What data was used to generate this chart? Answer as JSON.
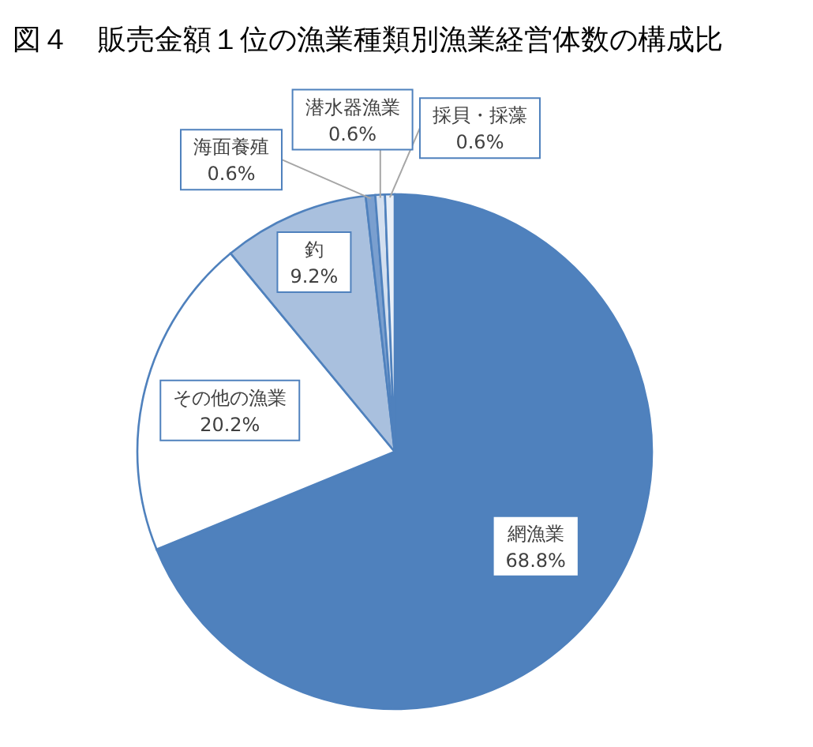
{
  "chart_data": {
    "type": "pie",
    "title": "図４　販売金額１位の漁業種類別漁業経営体数の構成比",
    "categories": [
      "網漁業",
      "その他の漁業",
      "釣",
      "海面養殖",
      "潜水器漁業",
      "採貝・採藻"
    ],
    "values": [
      68.8,
      20.2,
      9.2,
      0.6,
      0.6,
      0.6
    ],
    "colors": [
      "#4f81bd",
      "#ffffff",
      "#a9c0de",
      "#7a9fcf",
      "#d3dfef",
      "#eaf0f8"
    ],
    "value_labels": [
      "68.8%",
      "20.2%",
      "9.2%",
      "0.6%",
      "0.6%",
      "0.6%"
    ]
  }
}
